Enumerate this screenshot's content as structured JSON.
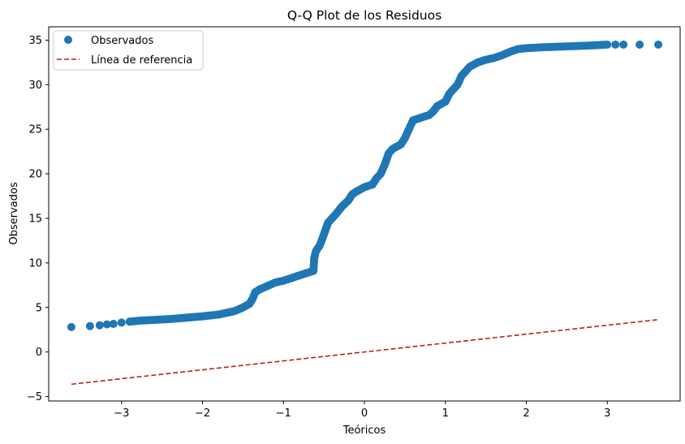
{
  "chart_data": {
    "type": "scatter",
    "title": "Q-Q Plot de los Residuos",
    "xlabel": "Teóricos",
    "ylabel": "Observados",
    "xlim": [
      -3.9,
      3.9
    ],
    "ylim": [
      -5.5,
      36.5
    ],
    "xticks": [
      -3,
      -2,
      -1,
      0,
      1,
      2,
      3
    ],
    "yticks": [
      -5,
      0,
      5,
      10,
      15,
      20,
      25,
      30,
      35
    ],
    "grid": false,
    "legend_position": "top-left",
    "series": [
      {
        "name": "Observados",
        "kind": "scatter",
        "color": "#1f77b4",
        "points": [
          [
            -3.62,
            2.8
          ],
          [
            -3.39,
            2.9
          ],
          [
            -3.27,
            3.0
          ],
          [
            -3.18,
            3.1
          ],
          [
            -3.1,
            3.15
          ],
          [
            -3.0,
            3.3
          ],
          [
            -2.9,
            3.4
          ],
          [
            -2.8,
            3.5
          ],
          [
            -2.6,
            3.6
          ],
          [
            -2.4,
            3.7
          ],
          [
            -2.2,
            3.85
          ],
          [
            -2.0,
            4.0
          ],
          [
            -1.8,
            4.2
          ],
          [
            -1.6,
            4.6
          ],
          [
            -1.5,
            5.0
          ],
          [
            -1.42,
            5.4
          ],
          [
            -1.38,
            6.0
          ],
          [
            -1.35,
            6.7
          ],
          [
            -1.3,
            7.0
          ],
          [
            -1.2,
            7.4
          ],
          [
            -1.1,
            7.8
          ],
          [
            -1.0,
            8.0
          ],
          [
            -0.9,
            8.3
          ],
          [
            -0.8,
            8.6
          ],
          [
            -0.7,
            8.9
          ],
          [
            -0.63,
            9.1
          ],
          [
            -0.62,
            10.5
          ],
          [
            -0.6,
            11.3
          ],
          [
            -0.55,
            12.0
          ],
          [
            -0.5,
            13.2
          ],
          [
            -0.45,
            14.5
          ],
          [
            -0.35,
            15.5
          ],
          [
            -0.28,
            16.3
          ],
          [
            -0.2,
            17.0
          ],
          [
            -0.15,
            17.7
          ],
          [
            -0.1,
            18.0
          ],
          [
            0.0,
            18.5
          ],
          [
            0.1,
            18.8
          ],
          [
            0.15,
            19.5
          ],
          [
            0.2,
            20.0
          ],
          [
            0.25,
            21.0
          ],
          [
            0.3,
            22.3
          ],
          [
            0.35,
            22.8
          ],
          [
            0.45,
            23.3
          ],
          [
            0.5,
            24.0
          ],
          [
            0.55,
            25.0
          ],
          [
            0.6,
            26.0
          ],
          [
            0.7,
            26.3
          ],
          [
            0.8,
            26.6
          ],
          [
            0.85,
            27.0
          ],
          [
            0.9,
            27.6
          ],
          [
            1.0,
            28.1
          ],
          [
            1.05,
            29.0
          ],
          [
            1.1,
            29.5
          ],
          [
            1.15,
            30.0
          ],
          [
            1.2,
            31.0
          ],
          [
            1.25,
            31.5
          ],
          [
            1.3,
            32.0
          ],
          [
            1.4,
            32.5
          ],
          [
            1.5,
            32.8
          ],
          [
            1.6,
            33.0
          ],
          [
            1.7,
            33.3
          ],
          [
            1.8,
            33.7
          ],
          [
            1.9,
            34.0
          ],
          [
            2.0,
            34.1
          ],
          [
            2.2,
            34.2
          ],
          [
            2.5,
            34.3
          ],
          [
            2.8,
            34.4
          ],
          [
            3.0,
            34.5
          ],
          [
            3.1,
            34.5
          ],
          [
            3.2,
            34.5
          ],
          [
            3.4,
            34.5
          ],
          [
            3.63,
            34.5
          ]
        ]
      },
      {
        "name": "Línea de referencia",
        "kind": "line",
        "style": "dashed",
        "color": "#b22222",
        "points": [
          [
            -3.62,
            -3.62
          ],
          [
            3.62,
            3.62
          ]
        ]
      }
    ]
  }
}
